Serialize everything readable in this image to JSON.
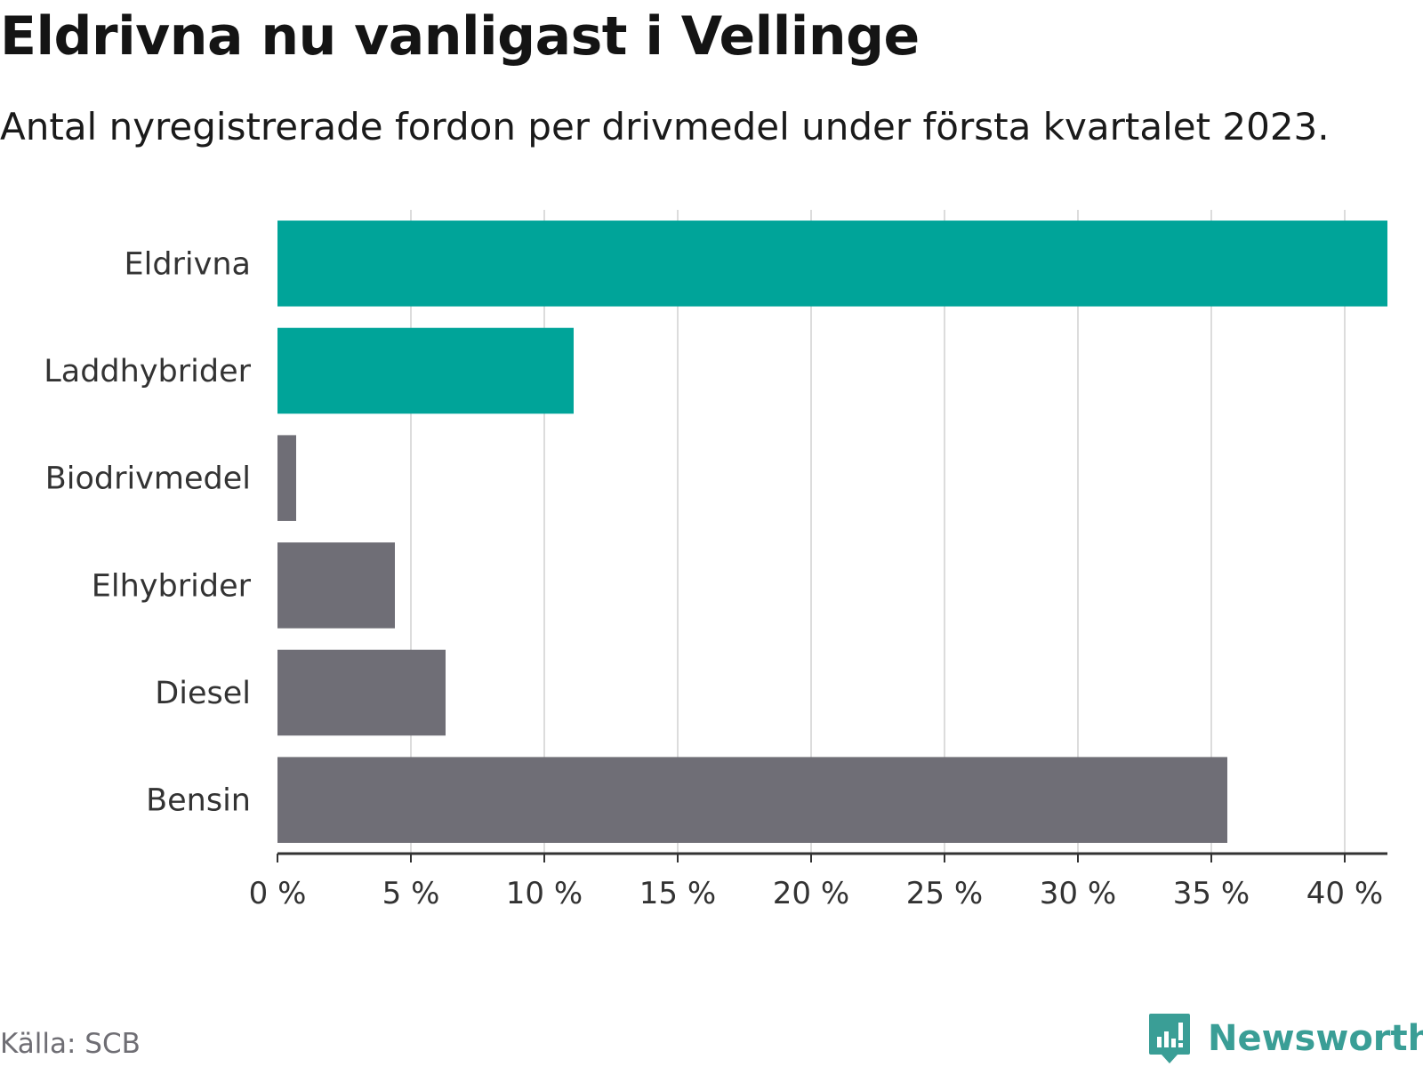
{
  "chart_data": {
    "type": "bar",
    "orientation": "horizontal",
    "title": "Eldrivna nu vanligast i Vellinge",
    "subtitle": "Antal nyregistrerade fordon per drivmedel under första kvartalet 2023.",
    "categories": [
      "Eldrivna",
      "Laddhybrider",
      "Biodrivmedel",
      "Elhybrider",
      "Diesel",
      "Bensin"
    ],
    "values": [
      41.6,
      11.1,
      0.7,
      4.4,
      6.3,
      35.6
    ],
    "bar_colors": [
      "#00a499",
      "#00a499",
      "#6f6e76",
      "#6f6e76",
      "#6f6e76",
      "#6f6e76"
    ],
    "xlim": [
      0,
      41.6
    ],
    "xticks": [
      0,
      5,
      10,
      15,
      20,
      25,
      30,
      35,
      40
    ],
    "xtick_labels": [
      "0 %",
      "5 %",
      "10 %",
      "15 %",
      "20 %",
      "25 %",
      "30 %",
      "35 %",
      "40 %"
    ],
    "xlabel": "",
    "ylabel": "",
    "grid": true
  },
  "source": "Källa: SCB",
  "brand": {
    "name": "Newsworthy",
    "icon": "newsworthy-logo-icon",
    "color": "#3a9e96"
  }
}
